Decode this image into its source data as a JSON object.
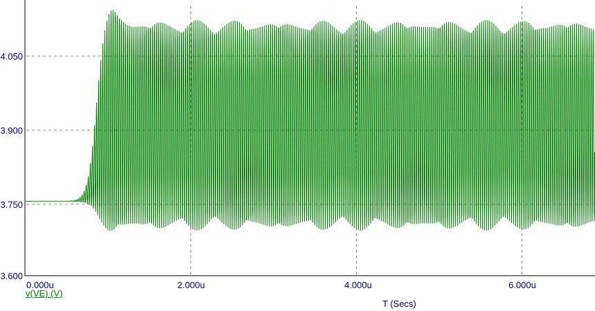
{
  "chart_data": {
    "type": "line",
    "title": "",
    "xlabel": "T (Secs)",
    "ylabel": "",
    "trace_label": "v(VE) (V)",
    "xticks": [
      "0.000u",
      "2.000u",
      "4.000u",
      "6.000u"
    ],
    "xtick_values_us": [
      0,
      2,
      4,
      6
    ],
    "yticks": [
      "4.050",
      "3.900",
      "3.750",
      "3.600"
    ],
    "ytick_values": [
      4.05,
      3.9,
      3.75,
      3.6
    ],
    "x_range_us": [
      0,
      6.88
    ],
    "y_range": [
      3.6,
      4.158
    ],
    "grid": "dashed",
    "legend_position": "bottom-left",
    "signal": {
      "description": "oscillator start-up transient: flat DC level, exponential build-up with overshoot, then steady sinusoidal oscillation with slight amplitude beating",
      "initial_level_V": 3.756,
      "steady_center_V": 3.91,
      "steady_amplitude_V": 0.206,
      "steady_min_V": 3.698,
      "steady_max_V": 4.115,
      "overshoot_peak_V": 4.145,
      "onset_time_us": 0.53,
      "full_amplitude_time_us": 1.05,
      "carrier_period_us": 0.025,
      "growth_mid_us": 0.85,
      "growth_tau_us": 0.05,
      "overshoot_center_us": 1.05,
      "overshoot_width_us": 0.13,
      "overshoot_amp_factor": 0.1,
      "overshoot_center_shift_V": 0.013,
      "am_beat_period_us": 0.5,
      "am_depth": 0.035
    }
  },
  "colors": {
    "trace": "#008000",
    "axis": "#808080",
    "grid": "#8c8c8c",
    "tick_text": "#000080",
    "background": "#ffffff"
  }
}
